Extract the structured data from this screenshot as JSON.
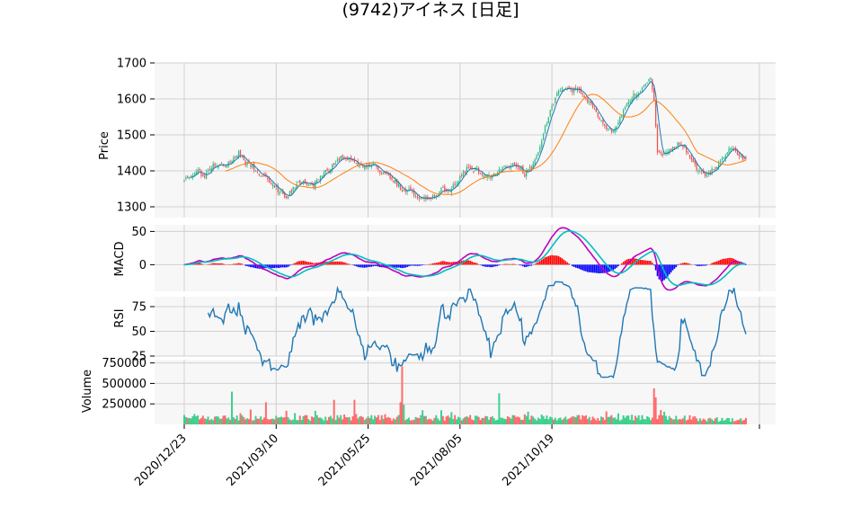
{
  "chart_data": {
    "type": "candlestick",
    "title": "(9742)アイネス  [日足]",
    "colors": {
      "up": "#2ebd85",
      "down": "#ef5350",
      "sma_short": "#1f77b4",
      "sma_long": "#ff7f0e",
      "macd": "#bf00bf",
      "signal": "#00bfbf",
      "hist_up": "#ff0000",
      "hist_down": "#0000ff",
      "rsi": "#1f77b4",
      "vol_up": "#3fcf8e",
      "vol_down": "#ff6b6b",
      "grid": "#d0d0d0",
      "panel_bg": "#f7f7f7"
    },
    "x_ticks": [
      "2020/12/23",
      "2021/03/10",
      "2021/05/25",
      "2021/08/05",
      "2021/10/19"
    ],
    "price_panel": {
      "ylabel": "Price",
      "ylim": [
        1270,
        1700
      ],
      "yticks": [
        "1300",
        "1400",
        "1500",
        "1600",
        "1700"
      ],
      "close_anchors": [
        [
          0,
          1380
        ],
        [
          4,
          1390
        ],
        [
          8,
          1400
        ],
        [
          12,
          1385
        ],
        [
          16,
          1410
        ],
        [
          20,
          1420
        ],
        [
          24,
          1415
        ],
        [
          28,
          1425
        ],
        [
          32,
          1450
        ],
        [
          36,
          1420
        ],
        [
          40,
          1415
        ],
        [
          44,
          1395
        ],
        [
          48,
          1380
        ],
        [
          52,
          1365
        ],
        [
          56,
          1340
        ],
        [
          60,
          1330
        ],
        [
          64,
          1350
        ],
        [
          68,
          1370
        ],
        [
          72,
          1365
        ],
        [
          76,
          1360
        ],
        [
          80,
          1385
        ],
        [
          84,
          1400
        ],
        [
          88,
          1415
        ],
        [
          92,
          1440
        ],
        [
          96,
          1430
        ],
        [
          100,
          1425
        ],
        [
          104,
          1415
        ],
        [
          108,
          1420
        ],
        [
          112,
          1415
        ],
        [
          116,
          1395
        ],
        [
          120,
          1390
        ],
        [
          124,
          1370
        ],
        [
          128,
          1345
        ],
        [
          132,
          1350
        ],
        [
          136,
          1330
        ],
        [
          140,
          1320
        ],
        [
          144,
          1325
        ],
        [
          148,
          1335
        ],
        [
          152,
          1350
        ],
        [
          156,
          1345
        ],
        [
          160,
          1365
        ],
        [
          164,
          1400
        ],
        [
          168,
          1410
        ],
        [
          172,
          1400
        ],
        [
          176,
          1390
        ],
        [
          180,
          1385
        ],
        [
          184,
          1395
        ],
        [
          188,
          1410
        ],
        [
          192,
          1420
        ],
        [
          196,
          1415
        ],
        [
          200,
          1390
        ],
        [
          204,
          1410
        ],
        [
          208,
          1450
        ],
        [
          212,
          1520
        ],
        [
          216,
          1580
        ],
        [
          220,
          1620
        ],
        [
          224,
          1635
        ],
        [
          228,
          1625
        ],
        [
          232,
          1630
        ],
        [
          236,
          1600
        ],
        [
          240,
          1575
        ],
        [
          244,
          1545
        ],
        [
          248,
          1520
        ],
        [
          252,
          1505
        ],
        [
          256,
          1545
        ],
        [
          260,
          1590
        ],
        [
          264,
          1610
        ],
        [
          268,
          1620
        ],
        [
          272,
          1640
        ],
        [
          274,
          1665
        ],
        [
          276,
          1600
        ],
        [
          278,
          1450
        ],
        [
          282,
          1445
        ],
        [
          286,
          1460
        ],
        [
          290,
          1475
        ],
        [
          294,
          1465
        ],
        [
          298,
          1430
        ],
        [
          302,
          1400
        ],
        [
          306,
          1385
        ],
        [
          310,
          1400
        ],
        [
          314,
          1420
        ],
        [
          318,
          1450
        ],
        [
          322,
          1465
        ],
        [
          326,
          1445
        ],
        [
          330,
          1430
        ]
      ]
    },
    "macd_panel": {
      "ylabel": "MACD",
      "ylim": [
        -40,
        60
      ],
      "yticks": [
        "0",
        "50"
      ]
    },
    "rsi_panel": {
      "ylabel": "RSI",
      "ylim": [
        25,
        85
      ],
      "yticks": [
        "25",
        "50",
        "75"
      ]
    },
    "volume_panel": {
      "ylabel": "Volume",
      "ylim": [
        0,
        790000
      ],
      "yticks": [
        "250000",
        "500000",
        "750000"
      ]
    }
  }
}
